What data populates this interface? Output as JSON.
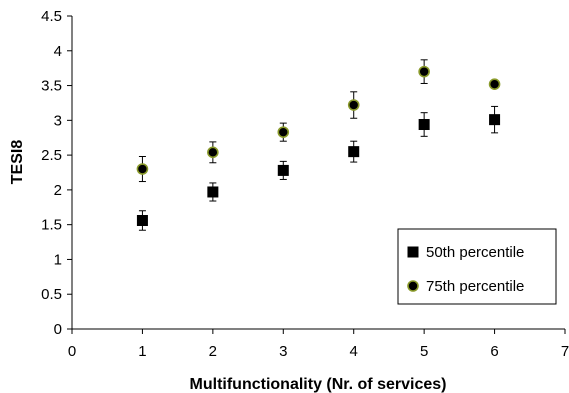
{
  "chart_data": {
    "type": "scatter",
    "title": "",
    "xlabel": "Multifunctionality (Nr. of services)",
    "ylabel": "TESI8",
    "xlim": [
      0,
      7
    ],
    "ylim": [
      0,
      4.5
    ],
    "xticks": [
      "0",
      "1",
      "2",
      "3",
      "4",
      "5",
      "6",
      "7"
    ],
    "yticks": [
      "0",
      "0.5",
      "1",
      "1.5",
      "2",
      "2.5",
      "3",
      "3.5",
      "4",
      "4.5"
    ],
    "grid": false,
    "legend_position": "bottom-right",
    "series": [
      {
        "name": "50th percentile",
        "marker": "square",
        "color": "#000000",
        "x": [
          1,
          2,
          3,
          4,
          5,
          6
        ],
        "y": [
          1.56,
          1.97,
          2.28,
          2.55,
          2.94,
          3.01
        ],
        "error": [
          0.14,
          0.13,
          0.13,
          0.15,
          0.17,
          0.19
        ]
      },
      {
        "name": "75th percentile",
        "marker": "circle",
        "color": "#000000",
        "edge_color": "#8a9a2a",
        "x": [
          1,
          2,
          3,
          4,
          5,
          6
        ],
        "y": [
          2.3,
          2.54,
          2.83,
          3.22,
          3.7,
          3.52
        ],
        "error": [
          0.18,
          0.15,
          0.13,
          0.19,
          0.17,
          0.0
        ]
      }
    ]
  }
}
